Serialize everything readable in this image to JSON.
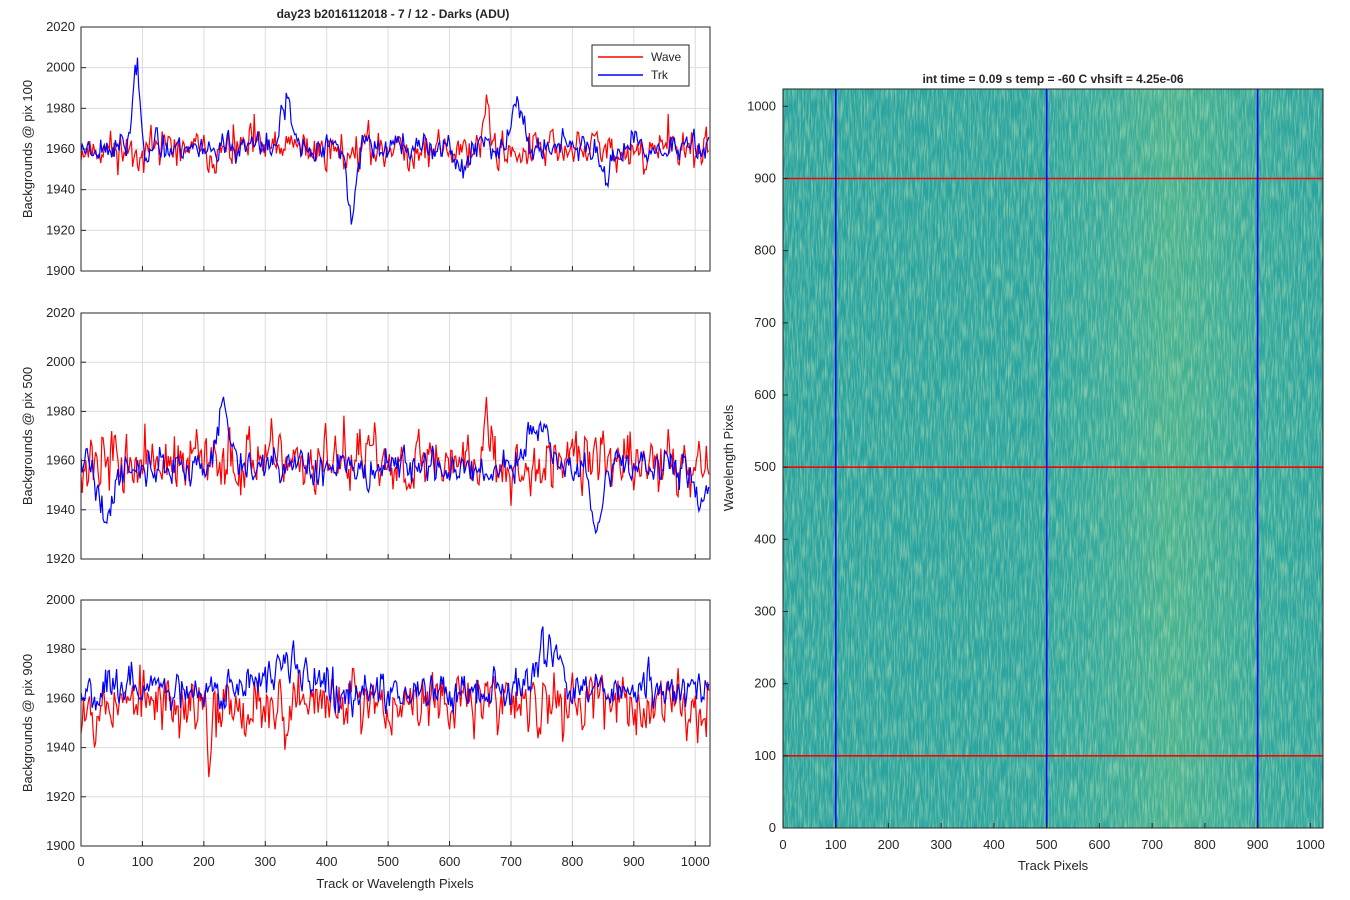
{
  "figure": {
    "left_panels": [
      {
        "title": "day23 b2016112018 - 7 / 12 - Darks (ADU)",
        "ylabel": "Backgrounds @ pix 100",
        "xlabel": "",
        "ylim": [
          1900,
          2020
        ],
        "yticks": [
          "1900",
          "1920",
          "1940",
          "1960",
          "1980",
          "2000",
          "2020"
        ],
        "xticks": [],
        "legend": {
          "position": "top-right",
          "entries": [
            "Wave",
            "Trk"
          ]
        }
      },
      {
        "title": "",
        "ylabel": "Backgrounds @ pix 500",
        "xlabel": "",
        "ylim": [
          1920,
          2020
        ],
        "yticks": [
          "1920",
          "1940",
          "1960",
          "1980",
          "2000",
          "2020"
        ],
        "xticks": []
      },
      {
        "title": "",
        "ylabel": "Backgrounds @ pix 900",
        "xlabel": "Track or Wavelength Pixels",
        "ylim": [
          1900,
          2000
        ],
        "yticks": [
          "1900",
          "1920",
          "1940",
          "1960",
          "1980",
          "2000"
        ],
        "xticks": [
          "0",
          "100",
          "200",
          "300",
          "400",
          "500",
          "600",
          "700",
          "800",
          "900",
          "1000"
        ]
      }
    ],
    "image_panel": {
      "title": "int time = 0.09 s    temp = -60 C    vhsift = 4.25e-06",
      "xlabel": "Track Pixels",
      "ylabel": "Wavelength Pixels",
      "xticks": [
        "0",
        "100",
        "200",
        "300",
        "400",
        "500",
        "600",
        "700",
        "800",
        "900",
        "1000"
      ],
      "yticks": [
        "0",
        "100",
        "200",
        "300",
        "400",
        "500",
        "600",
        "700",
        "800",
        "900",
        "1000"
      ],
      "colors": {
        "wave": "#ff0000",
        "trk": "#0000ff",
        "base": "#2aa3a0"
      }
    }
  },
  "chart_data": [
    {
      "type": "line",
      "x": [
        0,
        1023
      ],
      "xlim": [
        0,
        1024
      ],
      "ylim": [
        1900,
        2020
      ],
      "grid": true,
      "series": [
        {
          "name": "Wave",
          "color": "#ff0000",
          "mean": 1960,
          "noise": 7,
          "seed": 11,
          "features": [
            [
              660,
              25,
              6
            ]
          ]
        },
        {
          "name": "Trk",
          "color": "#0000ff",
          "mean": 1961,
          "noise": 5,
          "seed": 23,
          "features": [
            [
              90,
              40,
              8
            ],
            [
              335,
              22,
              12
            ],
            [
              440,
              -35,
              10
            ],
            [
              710,
              22,
              12
            ],
            [
              850,
              -15,
              12
            ],
            [
              620,
              -10,
              15
            ]
          ]
        }
      ]
    },
    {
      "type": "line",
      "x": [
        0,
        1023
      ],
      "xlim": [
        0,
        1024
      ],
      "ylim": [
        1920,
        2020
      ],
      "grid": true,
      "series": [
        {
          "name": "Wave",
          "color": "#ff0000",
          "mean": 1959,
          "noise": 9,
          "seed": 37,
          "features": [
            [
              660,
              30,
              4
            ]
          ]
        },
        {
          "name": "Trk",
          "color": "#0000ff",
          "mean": 1957,
          "noise": 5,
          "seed": 41,
          "features": [
            [
              40,
              -22,
              15
            ],
            [
              230,
              25,
              14
            ],
            [
              740,
              18,
              20
            ],
            [
              840,
              -25,
              12
            ],
            [
              1010,
              -15,
              10
            ]
          ]
        }
      ]
    },
    {
      "type": "line",
      "x": [
        0,
        1023
      ],
      "xlim": [
        0,
        1024
      ],
      "ylim": [
        1900,
        2000
      ],
      "grid": true,
      "series": [
        {
          "name": "Wave",
          "color": "#ff0000",
          "mean": 1958,
          "noise": 9,
          "seed": 53,
          "features": [
            [
              210,
              -30,
              4
            ]
          ]
        },
        {
          "name": "Trk",
          "color": "#0000ff",
          "mean": 1964,
          "noise": 6,
          "seed": 67,
          "features": [
            [
              330,
              10,
              30
            ],
            [
              760,
              15,
              25
            ]
          ]
        }
      ]
    },
    {
      "type": "heatmap",
      "xlim": [
        0,
        1024
      ],
      "ylim": [
        0,
        1024
      ],
      "vertical_markers": [
        100,
        500,
        900
      ],
      "horizontal_markers": [
        100,
        500,
        900
      ],
      "marker_colors": {
        "vertical": "#0000ff",
        "horizontal": "#ff0000"
      }
    }
  ]
}
